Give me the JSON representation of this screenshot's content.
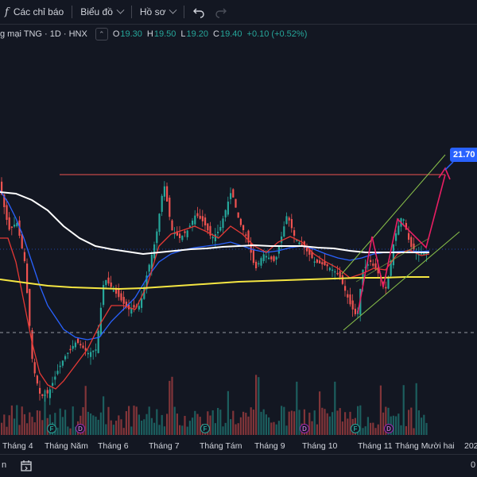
{
  "toolbar": {
    "fx_symbol": "f",
    "indicators_label": "Các chỉ báo",
    "chart_label": "Biểu đồ",
    "profile_label": "Hồ sơ",
    "undo_icon": "undo-icon",
    "redo_icon": "redo-icon"
  },
  "legend": {
    "symbol_title": "g mại TNG · 1D · HNX",
    "o_key": "O",
    "o_val": "19.30",
    "h_key": "H",
    "h_val": "19.50",
    "l_key": "L",
    "l_val": "19.20",
    "c_key": "C",
    "c_val": "19.40",
    "change": "+0.10 (+0.52%)",
    "collapse_icon": "chevron-up-icon"
  },
  "price_tag": "21.70",
  "time_axis": {
    "ticks": [
      "Tháng 4",
      "Tháng Năm",
      "Tháng 6",
      "Tháng 7",
      "Tháng Tám",
      "Tháng 9",
      "Tháng 10",
      "Tháng 11",
      "Tháng Mười hai",
      "202"
    ]
  },
  "bottom_bar": {
    "left_text": "n",
    "right_text": "0"
  },
  "events": [
    {
      "type": "F",
      "label": "F"
    },
    {
      "type": "D",
      "label": "D"
    },
    {
      "type": "F",
      "label": "F"
    },
    {
      "type": "D",
      "label": "D"
    },
    {
      "type": "F",
      "label": "F"
    },
    {
      "type": "D",
      "label": "D"
    }
  ],
  "colors": {
    "background": "#131722",
    "up": "#26a69a",
    "down": "#ef5350",
    "ma_white": "#ffffff",
    "ma_yellow": "#f5e642",
    "ma_blue": "#2962ff",
    "ma_red": "#e53935",
    "channel": "#8bc34a",
    "arrow": "#e91e63",
    "resistance": "#ef5350",
    "price_tag": "#2962ff"
  }
}
